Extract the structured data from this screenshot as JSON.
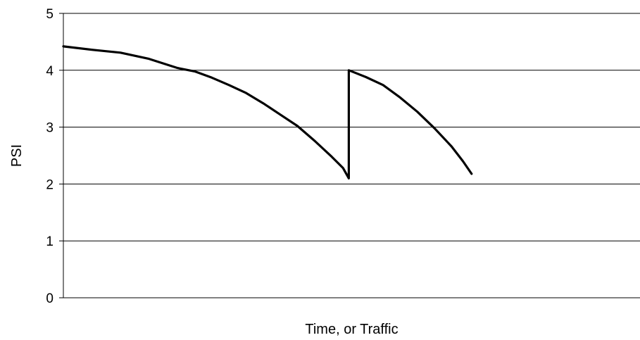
{
  "chart_data": {
    "type": "line",
    "title": "",
    "xlabel": "Time, or Traffic",
    "ylabel": "PSI",
    "ylim": [
      0,
      5
    ],
    "yticks": [
      0,
      1,
      2,
      3,
      4,
      5
    ],
    "grid": "horizontal",
    "legend": "none",
    "line_color": "#000000",
    "series": [
      {
        "x": [
          0,
          0.05,
          0.1,
          0.15,
          0.2,
          0.25,
          0.3,
          0.35,
          0.4,
          0.45,
          0.5,
          0.55,
          0.6,
          0.65,
          0.7,
          0.72,
          0.75,
          0.77,
          0.8,
          0.85,
          0.9,
          0.95,
          1.0,
          1.05,
          1.1,
          1.15,
          1.2,
          1.25,
          1.3,
          1.35,
          1.4,
          1.45,
          1.5,
          1.55,
          1.6,
          1.65,
          1.7,
          1.75,
          1.8,
          1.85,
          1.9,
          1.95,
          2.0
        ],
        "y": [
          4.42,
          4.38,
          4.35,
          4.31,
          4.21,
          4.0,
          3.62,
          2.95,
          2.1,
          4.0,
          3.75,
          3.35,
          2.8,
          2.2,
          null,
          null,
          null,
          null,
          null,
          null,
          null,
          null,
          null,
          null,
          null,
          null,
          null,
          null,
          null,
          null,
          null,
          null,
          null,
          null,
          null,
          null,
          null,
          null,
          null,
          null,
          null,
          null,
          null
        ],
        "points": [
          [
            0.0,
            4.42
          ],
          [
            0.1,
            4.36
          ],
          [
            0.2,
            4.31
          ],
          [
            0.3,
            4.2
          ],
          [
            0.4,
            4.04
          ],
          [
            0.46,
            3.98
          ],
          [
            0.52,
            3.87
          ],
          [
            0.58,
            3.74
          ],
          [
            0.64,
            3.6
          ],
          [
            0.7,
            3.42
          ],
          [
            0.76,
            3.22
          ],
          [
            0.82,
            3.02
          ],
          [
            0.88,
            2.76
          ],
          [
            0.94,
            2.48
          ],
          [
            0.98,
            2.28
          ],
          [
            1.0,
            2.1
          ],
          [
            1.0,
            4.0
          ],
          [
            1.06,
            3.88
          ],
          [
            1.12,
            3.74
          ],
          [
            1.18,
            3.52
          ],
          [
            1.24,
            3.27
          ],
          [
            1.3,
            2.98
          ],
          [
            1.36,
            2.66
          ],
          [
            1.4,
            2.4
          ],
          [
            1.43,
            2.18
          ]
        ]
      }
    ]
  }
}
